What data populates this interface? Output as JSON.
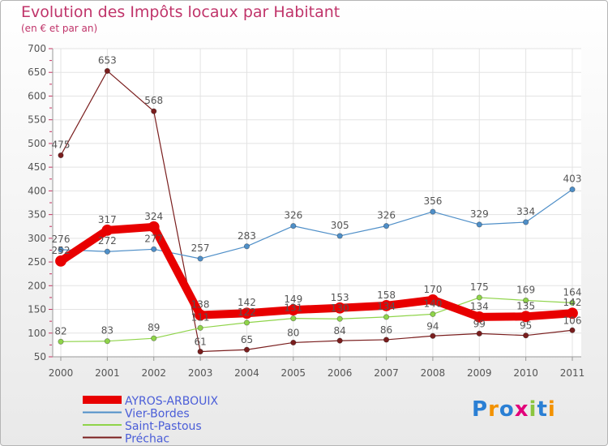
{
  "header": {
    "title": "Evolution des Impôts locaux par Habitant",
    "subtitle": "(en € et par an)"
  },
  "logo": {
    "text": "Proxiti",
    "colors": [
      "#2a7fd4",
      "#f39200",
      "#2a7fd4",
      "#e2007a",
      "#8bc53f",
      "#2a7fd4",
      "#f39200"
    ]
  },
  "chart_data": {
    "type": "line",
    "title": "Evolution des Impôts locaux par Habitant",
    "subtitle": "(en € et par an)",
    "xlabel": "",
    "ylabel": "",
    "ylim": [
      50,
      700
    ],
    "yticks": [
      50,
      100,
      150,
      200,
      250,
      300,
      350,
      400,
      450,
      500,
      550,
      600,
      650,
      700
    ],
    "categories": [
      "2000",
      "2001",
      "2002",
      "2003",
      "2004",
      "2005",
      "2006",
      "2007",
      "2008",
      "2009",
      "2010",
      "2011"
    ],
    "grid": true,
    "legend_position": "bottom-left",
    "series": [
      {
        "name": "AYROS-ARBOUIX",
        "color": "#e80000",
        "width": "thick",
        "values": [
          252,
          317,
          324,
          138,
          142,
          149,
          153,
          158,
          170,
          134,
          135,
          142
        ],
        "labels": [
          "252",
          "317",
          "324",
          "138",
          "142",
          "149",
          "153",
          "158",
          "170",
          "134",
          "135",
          "142"
        ]
      },
      {
        "name": "Vier-Bordes",
        "color": "#4f8fc8",
        "width": "thin",
        "values": [
          276,
          272,
          277,
          257,
          283,
          326,
          305,
          326,
          356,
          329,
          334,
          403
        ],
        "labels": [
          "276",
          "272",
          "277",
          "257",
          "283",
          "326",
          "305",
          "326",
          "356",
          "329",
          "334",
          "403"
        ]
      },
      {
        "name": "Saint-Pastous",
        "color": "#8fd44a",
        "width": "thin",
        "values": [
          82,
          83,
          89,
          111,
          122,
          131,
          130,
          134,
          140,
          175,
          169,
          164
        ],
        "labels": [
          "82",
          "83",
          "89",
          "111",
          "122",
          "131",
          "130",
          "134",
          "140",
          "175",
          "169",
          "164"
        ]
      },
      {
        "name": "Préchac",
        "color": "#7a1e1e",
        "width": "thin",
        "values": [
          475,
          653,
          568,
          61,
          65,
          80,
          84,
          86,
          94,
          99,
          95,
          106
        ],
        "labels": [
          "475",
          "653",
          "568",
          "61",
          "65",
          "80",
          "84",
          "86",
          "94",
          "99",
          "95",
          "106"
        ]
      }
    ]
  }
}
